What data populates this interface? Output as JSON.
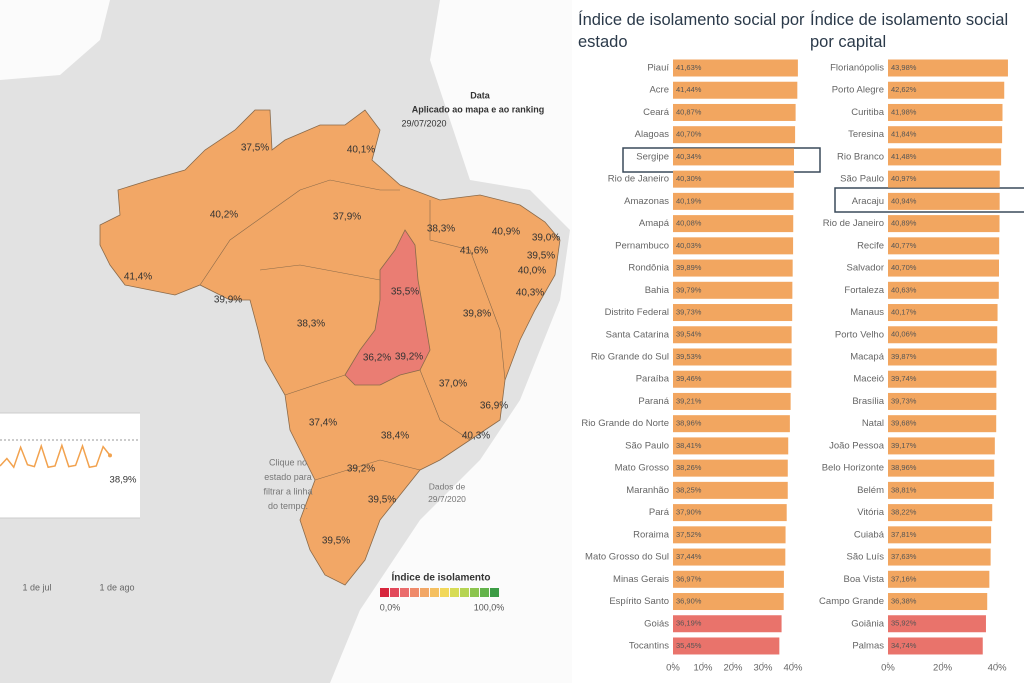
{
  "chart_data": [
    {
      "type": "bar",
      "orientation": "horizontal",
      "title": "Índice de isolamento social por estado",
      "categories": [
        "Piauí",
        "Acre",
        "Ceará",
        "Alagoas",
        "Sergipe",
        "Rio de Janeiro",
        "Amazonas",
        "Amapá",
        "Pernambuco",
        "Rondônia",
        "Bahia",
        "Distrito Federal",
        "Santa Catarina",
        "Rio Grande do Sul",
        "Paraíba",
        "Paraná",
        "Rio Grande do Norte",
        "São Paulo",
        "Mato Grosso",
        "Maranhão",
        "Pará",
        "Roraima",
        "Mato Grosso do Sul",
        "Minas Gerais",
        "Espírito Santo",
        "Goiás",
        "Tocantins"
      ],
      "values": [
        41.63,
        41.44,
        40.87,
        40.7,
        40.34,
        40.3,
        40.19,
        40.08,
        40.03,
        39.89,
        39.79,
        39.73,
        39.54,
        39.53,
        39.46,
        39.21,
        38.96,
        38.41,
        38.26,
        38.25,
        37.9,
        37.52,
        37.44,
        36.97,
        36.9,
        36.19,
        35.45
      ],
      "value_labels": [
        "41,63%",
        "41,44%",
        "40,87%",
        "40,70%",
        "40,34%",
        "40,30%",
        "40,19%",
        "40,08%",
        "40,03%",
        "39,89%",
        "39,79%",
        "39,73%",
        "39,54%",
        "39,53%",
        "39,46%",
        "39,21%",
        "38,96%",
        "38,41%",
        "38,26%",
        "38,25%",
        "37,90%",
        "37,52%",
        "37,44%",
        "36,97%",
        "36,90%",
        "36,19%",
        "35,45%"
      ],
      "colors": [
        "#f2a660",
        "#f2a660",
        "#f2a660",
        "#f2a660",
        "#f2a660",
        "#f2a660",
        "#f2a660",
        "#f2a660",
        "#f2a660",
        "#f2a660",
        "#f2a660",
        "#f2a660",
        "#f2a660",
        "#f2a660",
        "#f2a660",
        "#f2a660",
        "#f2a660",
        "#f2a660",
        "#f2a660",
        "#f2a660",
        "#f2a660",
        "#f2a660",
        "#f2a660",
        "#f2a660",
        "#f2a660",
        "#e9736b",
        "#e9736b"
      ],
      "xlim": [
        0,
        42
      ],
      "xticks": [
        {
          "value": 0,
          "label": "0%"
        },
        {
          "value": 10,
          "label": "10%"
        },
        {
          "value": 20,
          "label": "20%"
        },
        {
          "value": 30,
          "label": "30%"
        },
        {
          "value": 40,
          "label": "40%"
        }
      ]
    },
    {
      "type": "bar",
      "orientation": "horizontal",
      "title": "Índice de isolamento social por capital",
      "categories": [
        "Florianópolis",
        "Porto Alegre",
        "Curitiba",
        "Teresina",
        "Rio Branco",
        "São Paulo",
        "Aracaju",
        "Rio de Janeiro",
        "Recife",
        "Salvador",
        "Fortaleza",
        "Manaus",
        "Porto Velho",
        "Macapá",
        "Maceió",
        "Brasília",
        "Natal",
        "João Pessoa",
        "Belo Horizonte",
        "Belém",
        "Vitória",
        "Cuiabá",
        "São Luís",
        "Boa Vista",
        "Campo Grande",
        "Goiânia",
        "Palmas"
      ],
      "values": [
        43.98,
        42.62,
        41.98,
        41.84,
        41.48,
        40.97,
        40.94,
        40.89,
        40.77,
        40.7,
        40.63,
        40.17,
        40.06,
        39.87,
        39.74,
        39.73,
        39.68,
        39.17,
        38.96,
        38.81,
        38.22,
        37.81,
        37.63,
        37.16,
        36.38,
        35.92,
        34.74
      ],
      "value_labels": [
        "43,98%",
        "42,62%",
        "41,98%",
        "41,84%",
        "41,48%",
        "40,97%",
        "40,94%",
        "40,89%",
        "40,77%",
        "40,70%",
        "40,63%",
        "40,17%",
        "40,06%",
        "39,87%",
        "39,74%",
        "39,73%",
        "39,68%",
        "39,17%",
        "38,96%",
        "38,81%",
        "38,22%",
        "37,81%",
        "37,63%",
        "37,16%",
        "36,38%",
        "35,92%",
        "34,74%"
      ],
      "colors": [
        "#f2a660",
        "#f2a660",
        "#f2a660",
        "#f2a660",
        "#f2a660",
        "#f2a660",
        "#f2a660",
        "#f2a660",
        "#f2a660",
        "#f2a660",
        "#f2a660",
        "#f2a660",
        "#f2a660",
        "#f2a660",
        "#f2a660",
        "#f2a660",
        "#f2a660",
        "#f2a660",
        "#f2a660",
        "#f2a660",
        "#f2a660",
        "#f2a660",
        "#f2a660",
        "#f2a660",
        "#f2a660",
        "#e9736b",
        "#e9736b"
      ],
      "xlim": [
        0,
        44
      ],
      "xticks": [
        {
          "value": 0,
          "label": "0%"
        },
        {
          "value": 20,
          "label": "20%"
        },
        {
          "value": 40,
          "label": "40%"
        }
      ]
    },
    {
      "type": "map",
      "header": [
        "Data",
        "Aplicado ao mapa e ao ranking"
      ],
      "date": "29/07/2020",
      "values": [
        37.5,
        40.1,
        40.2,
        37.9,
        38.3,
        41.6,
        40.9,
        39.0,
        39.5,
        40.0,
        41.4,
        40.3,
        35.5,
        39.9,
        38.3,
        39.8,
        36.2,
        39.2,
        37.0,
        37.4,
        36.9,
        40.3,
        38.4,
        39.2,
        39.5,
        39.5
      ],
      "value_labels": [
        "37,5%",
        "40,1%",
        "40,2%",
        "37,9%",
        "38,3%",
        "41,6%",
        "40,9%",
        "39,0%",
        "39,5%",
        "40,0%",
        "41,4%",
        "40,3%",
        "35,5%",
        "39,9%",
        "38,3%",
        "39,8%",
        "36,2%",
        "39,2%",
        "37,0%",
        "37,4%",
        "36,9%",
        "40,3%",
        "38,4%",
        "39,2%",
        "39,5%",
        "39,5%"
      ],
      "note": [
        "Clique no",
        "estado para",
        "filtrar a linha",
        "do tempo."
      ],
      "legend_title": "Índice de isolamento",
      "legend_labels": [
        "0,0%",
        "100,0%"
      ]
    },
    {
      "type": "line",
      "color": "#f2a24e",
      "values": [
        37.2,
        38.4,
        37.0,
        40.2,
        37.4,
        37.1,
        40.4,
        37.0,
        37.2,
        40.5,
        37.1,
        37.3,
        40.4,
        37.0,
        37.2,
        40.3,
        38.9
      ],
      "ylim": [
        34,
        42
      ],
      "end_label": "38,9%",
      "x_labels": [
        "1 de jul",
        "1 de ago"
      ],
      "note": [
        "Dados de",
        "29/7/2020"
      ]
    }
  ]
}
